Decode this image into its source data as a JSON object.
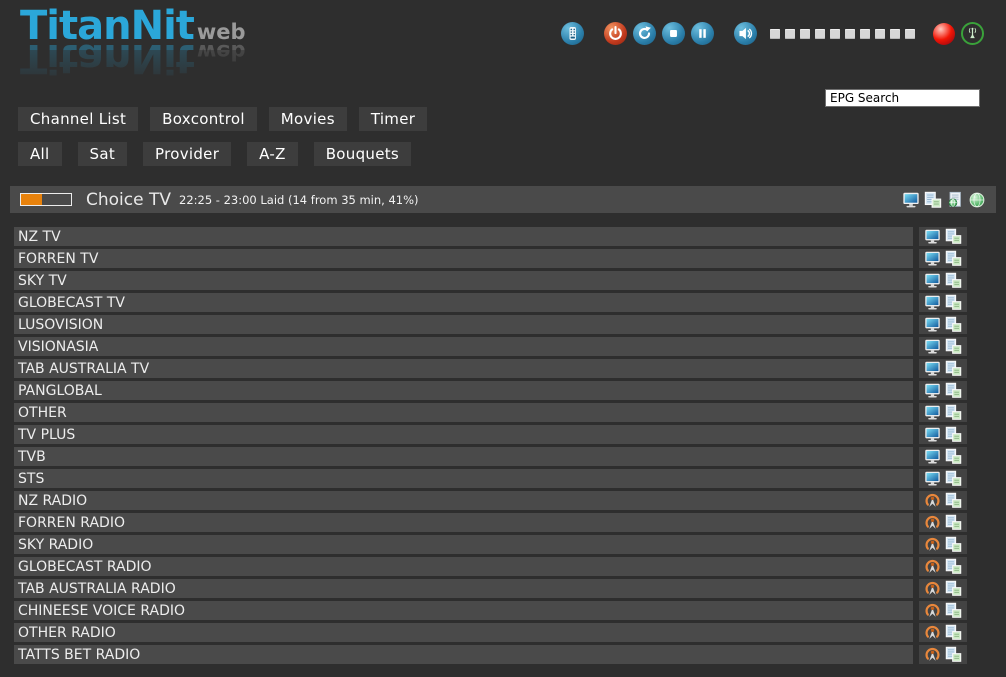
{
  "app": {
    "logo_main": "TitanNit",
    "logo_sub": "web"
  },
  "toolbar": {
    "buttons": [
      "remote",
      "power",
      "refresh",
      "stop",
      "pause",
      "mute"
    ],
    "volume_blocks": 10,
    "indicators": [
      "record",
      "stream"
    ]
  },
  "search": {
    "value": "EPG Search"
  },
  "nav": {
    "items": [
      "Channel List",
      "Boxcontrol",
      "Movies",
      "Timer"
    ]
  },
  "filters": {
    "items": [
      "All",
      "Sat",
      "Provider",
      "A-Z",
      "Bouquets"
    ]
  },
  "now_playing": {
    "channel": "Choice TV",
    "epg_info": "22:25 - 23:00 Laid (14 from 35 min, 41%)",
    "progress_percent": 41,
    "progress_color": "#e8820c",
    "icons": [
      "tv",
      "epg",
      "stream",
      "web"
    ]
  },
  "channels": [
    {
      "name": "NZ TV",
      "type": "tv"
    },
    {
      "name": "FORREN TV",
      "type": "tv"
    },
    {
      "name": "SKY TV",
      "type": "tv"
    },
    {
      "name": "GLOBECAST TV",
      "type": "tv"
    },
    {
      "name": "LUSOVISION",
      "type": "tv"
    },
    {
      "name": "VISIONASIA",
      "type": "tv"
    },
    {
      "name": "TAB AUSTRALIA TV",
      "type": "tv"
    },
    {
      "name": "PANGLOBAL",
      "type": "tv"
    },
    {
      "name": "OTHER",
      "type": "tv"
    },
    {
      "name": "TV PLUS",
      "type": "tv"
    },
    {
      "name": "TVB",
      "type": "tv"
    },
    {
      "name": "STS",
      "type": "tv"
    },
    {
      "name": "NZ RADIO",
      "type": "radio"
    },
    {
      "name": "FORREN RADIO",
      "type": "radio"
    },
    {
      "name": "SKY RADIO",
      "type": "radio"
    },
    {
      "name": "GLOBECAST RADIO",
      "type": "radio"
    },
    {
      "name": "TAB AUSTRALIA RADIO",
      "type": "radio"
    },
    {
      "name": "CHINEESE VOICE RADIO",
      "type": "radio"
    },
    {
      "name": "OTHER RADIO",
      "type": "radio"
    },
    {
      "name": "TATTS BET RADIO",
      "type": "radio"
    }
  ],
  "colors": {
    "page_bg": "#2e2e2e",
    "row_bg": "#4a4a4a",
    "button_bg": "#3d3d3d",
    "logo_accent": "#2ba7d9",
    "progress_fill": "#e8820c"
  }
}
